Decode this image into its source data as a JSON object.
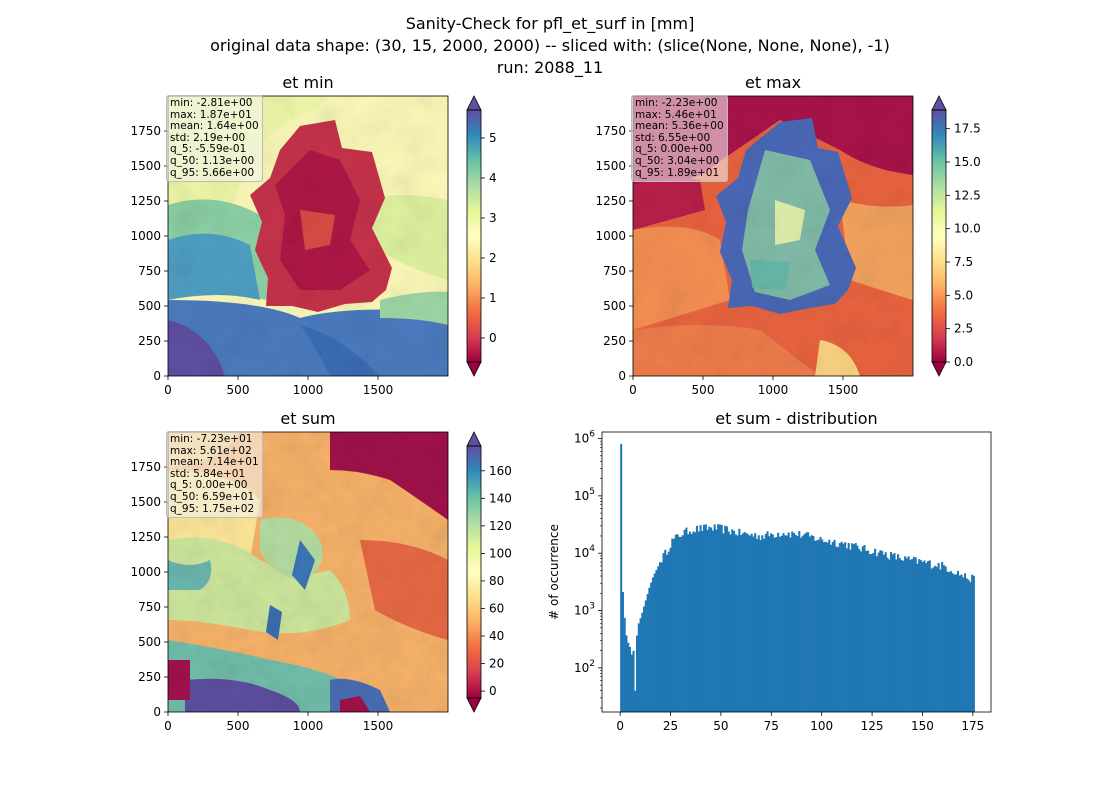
{
  "figure": {
    "suptitle_lines": [
      "Sanity-Check for pfl_et_surf in [mm]",
      "original data shape: (30, 15, 2000, 2000) -- sliced with: (slice(None, None, None), -1)",
      "run: 2088_11"
    ]
  },
  "colors": {
    "spectral_stops": [
      "#9e0142",
      "#d53e4f",
      "#f46d43",
      "#fdae61",
      "#fee08b",
      "#ffffbf",
      "#e6f598",
      "#abdda4",
      "#66c2a5",
      "#3288bd",
      "#5e4fa2"
    ],
    "hist_bar": "#1f77b4"
  },
  "chart_data": [
    {
      "type": "heatmap",
      "title": "et min",
      "xlim": [
        0,
        2000
      ],
      "ylim": [
        0,
        2000
      ],
      "xticks": [
        0,
        500,
        1000,
        1500
      ],
      "yticks": [
        0,
        250,
        500,
        750,
        1000,
        1250,
        1500,
        1750
      ],
      "colorbar": {
        "vmin": -0.6,
        "vmax": 5.7,
        "ticks": [
          0,
          1,
          2,
          3,
          4,
          5
        ],
        "extend": "both",
        "cmap": "Spectral"
      },
      "stats": [
        "min: -2.81e+00",
        "max: 1.87e+01",
        "mean: 1.64e+00",
        "std: 2.19e+00",
        "q_5: -5.59e-01",
        "q_50: 1.13e+00",
        "q_95: 5.66e+00"
      ]
    },
    {
      "type": "heatmap",
      "title": "et max",
      "xlim": [
        0,
        2000
      ],
      "ylim": [
        0,
        2000
      ],
      "xticks": [
        0,
        500,
        1000,
        1500
      ],
      "yticks": [
        0,
        250,
        500,
        750,
        1000,
        1250,
        1500,
        1750
      ],
      "colorbar": {
        "vmin": 0.0,
        "vmax": 18.9,
        "ticks": [
          0.0,
          2.5,
          5.0,
          7.5,
          10.0,
          12.5,
          15.0,
          17.5
        ],
        "tick_decimals": 1,
        "extend": "both",
        "cmap": "Spectral"
      },
      "stats": [
        "min: -2.23e+00",
        "max: 5.46e+01",
        "mean: 5.36e+00",
        "std: 6.55e+00",
        "q_5: 0.00e+00",
        "q_50: 3.04e+00",
        "q_95: 1.89e+01"
      ]
    },
    {
      "type": "heatmap",
      "title": "et sum",
      "xlim": [
        0,
        2000
      ],
      "ylim": [
        0,
        2000
      ],
      "xticks": [
        0,
        500,
        1000,
        1500
      ],
      "yticks": [
        0,
        250,
        500,
        750,
        1000,
        1250,
        1500,
        1750
      ],
      "colorbar": {
        "vmin": -5,
        "vmax": 178,
        "ticks": [
          0,
          20,
          40,
          60,
          80,
          100,
          120,
          140,
          160
        ],
        "extend": "both",
        "cmap": "Spectral"
      },
      "stats": [
        "min: -7.23e+01",
        "max: 5.61e+02",
        "mean: 7.14e+01",
        "std: 5.84e+01",
        "q_5: 0.00e+00",
        "q_50: 6.59e+01",
        "q_95: 1.75e+02"
      ]
    },
    {
      "type": "bar",
      "title": "et sum - distribution",
      "xlabel": "",
      "ylabel": "# of occurrence",
      "xlim": [
        -9,
        184
      ],
      "ylog": true,
      "ylim": [
        17,
        1300000
      ],
      "xticks": [
        0,
        25,
        50,
        75,
        100,
        125,
        150,
        175
      ],
      "yticks": [
        100,
        1000,
        10000,
        100000,
        1000000
      ],
      "bin_width": 0.875,
      "bins_start": 0,
      "anchors": [
        [
          0,
          800000
        ],
        [
          1,
          900
        ],
        [
          2,
          700
        ],
        [
          3,
          250
        ],
        [
          4,
          300
        ],
        [
          5,
          150
        ],
        [
          6,
          250
        ],
        [
          7,
          40
        ],
        [
          8,
          500
        ],
        [
          10,
          800
        ],
        [
          12,
          1400
        ],
        [
          14,
          2500
        ],
        [
          16,
          4000
        ],
        [
          18,
          5500
        ],
        [
          20,
          8000
        ],
        [
          22,
          10000
        ],
        [
          25,
          16000
        ],
        [
          30,
          22000
        ],
        [
          35,
          26000
        ],
        [
          40,
          27000
        ],
        [
          45,
          28000
        ],
        [
          50,
          27000
        ],
        [
          60,
          22000
        ],
        [
          70,
          20000
        ],
        [
          80,
          23000
        ],
        [
          90,
          21000
        ],
        [
          100,
          17000
        ],
        [
          110,
          15000
        ],
        [
          120,
          12000
        ],
        [
          125,
          11000
        ],
        [
          130,
          10000
        ],
        [
          140,
          8000
        ],
        [
          150,
          7000
        ],
        [
          160,
          6000
        ],
        [
          165,
          5000
        ],
        [
          170,
          4000
        ],
        [
          175,
          3500
        ]
      ]
    }
  ]
}
